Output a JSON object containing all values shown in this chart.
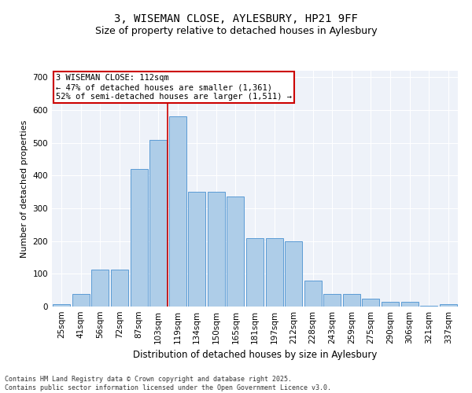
{
  "title_line1": "3, WISEMAN CLOSE, AYLESBURY, HP21 9FF",
  "title_line2": "Size of property relative to detached houses in Aylesbury",
  "xlabel": "Distribution of detached houses by size in Aylesbury",
  "ylabel": "Number of detached properties",
  "categories": [
    "25sqm",
    "41sqm",
    "56sqm",
    "72sqm",
    "87sqm",
    "103sqm",
    "119sqm",
    "134sqm",
    "150sqm",
    "165sqm",
    "181sqm",
    "197sqm",
    "212sqm",
    "228sqm",
    "243sqm",
    "259sqm",
    "275sqm",
    "290sqm",
    "306sqm",
    "321sqm",
    "337sqm"
  ],
  "values": [
    8,
    38,
    113,
    113,
    420,
    510,
    580,
    350,
    350,
    335,
    210,
    210,
    200,
    80,
    38,
    38,
    25,
    15,
    15,
    2,
    8
  ],
  "bar_color": "#aecde8",
  "bar_edge_color": "#5b9bd5",
  "annotation_box_edgecolor": "#cc0000",
  "annotation_line1": "3 WISEMAN CLOSE: 112sqm",
  "annotation_line2": "← 47% of detached houses are smaller (1,361)",
  "annotation_line3": "52% of semi-detached houses are larger (1,511) →",
  "vline_index": 6,
  "vline_color": "#cc0000",
  "ylim": [
    0,
    720
  ],
  "yticks": [
    0,
    100,
    200,
    300,
    400,
    500,
    600,
    700
  ],
  "background_color": "#eef2f9",
  "footer_line1": "Contains HM Land Registry data © Crown copyright and database right 2025.",
  "footer_line2": "Contains public sector information licensed under the Open Government Licence v3.0.",
  "annotation_fontsize": 7.5,
  "ylabel_fontsize": 8,
  "xlabel_fontsize": 8.5,
  "title_fontsize1": 10,
  "title_fontsize2": 9,
  "footer_fontsize": 6,
  "tick_fontsize": 7.5
}
